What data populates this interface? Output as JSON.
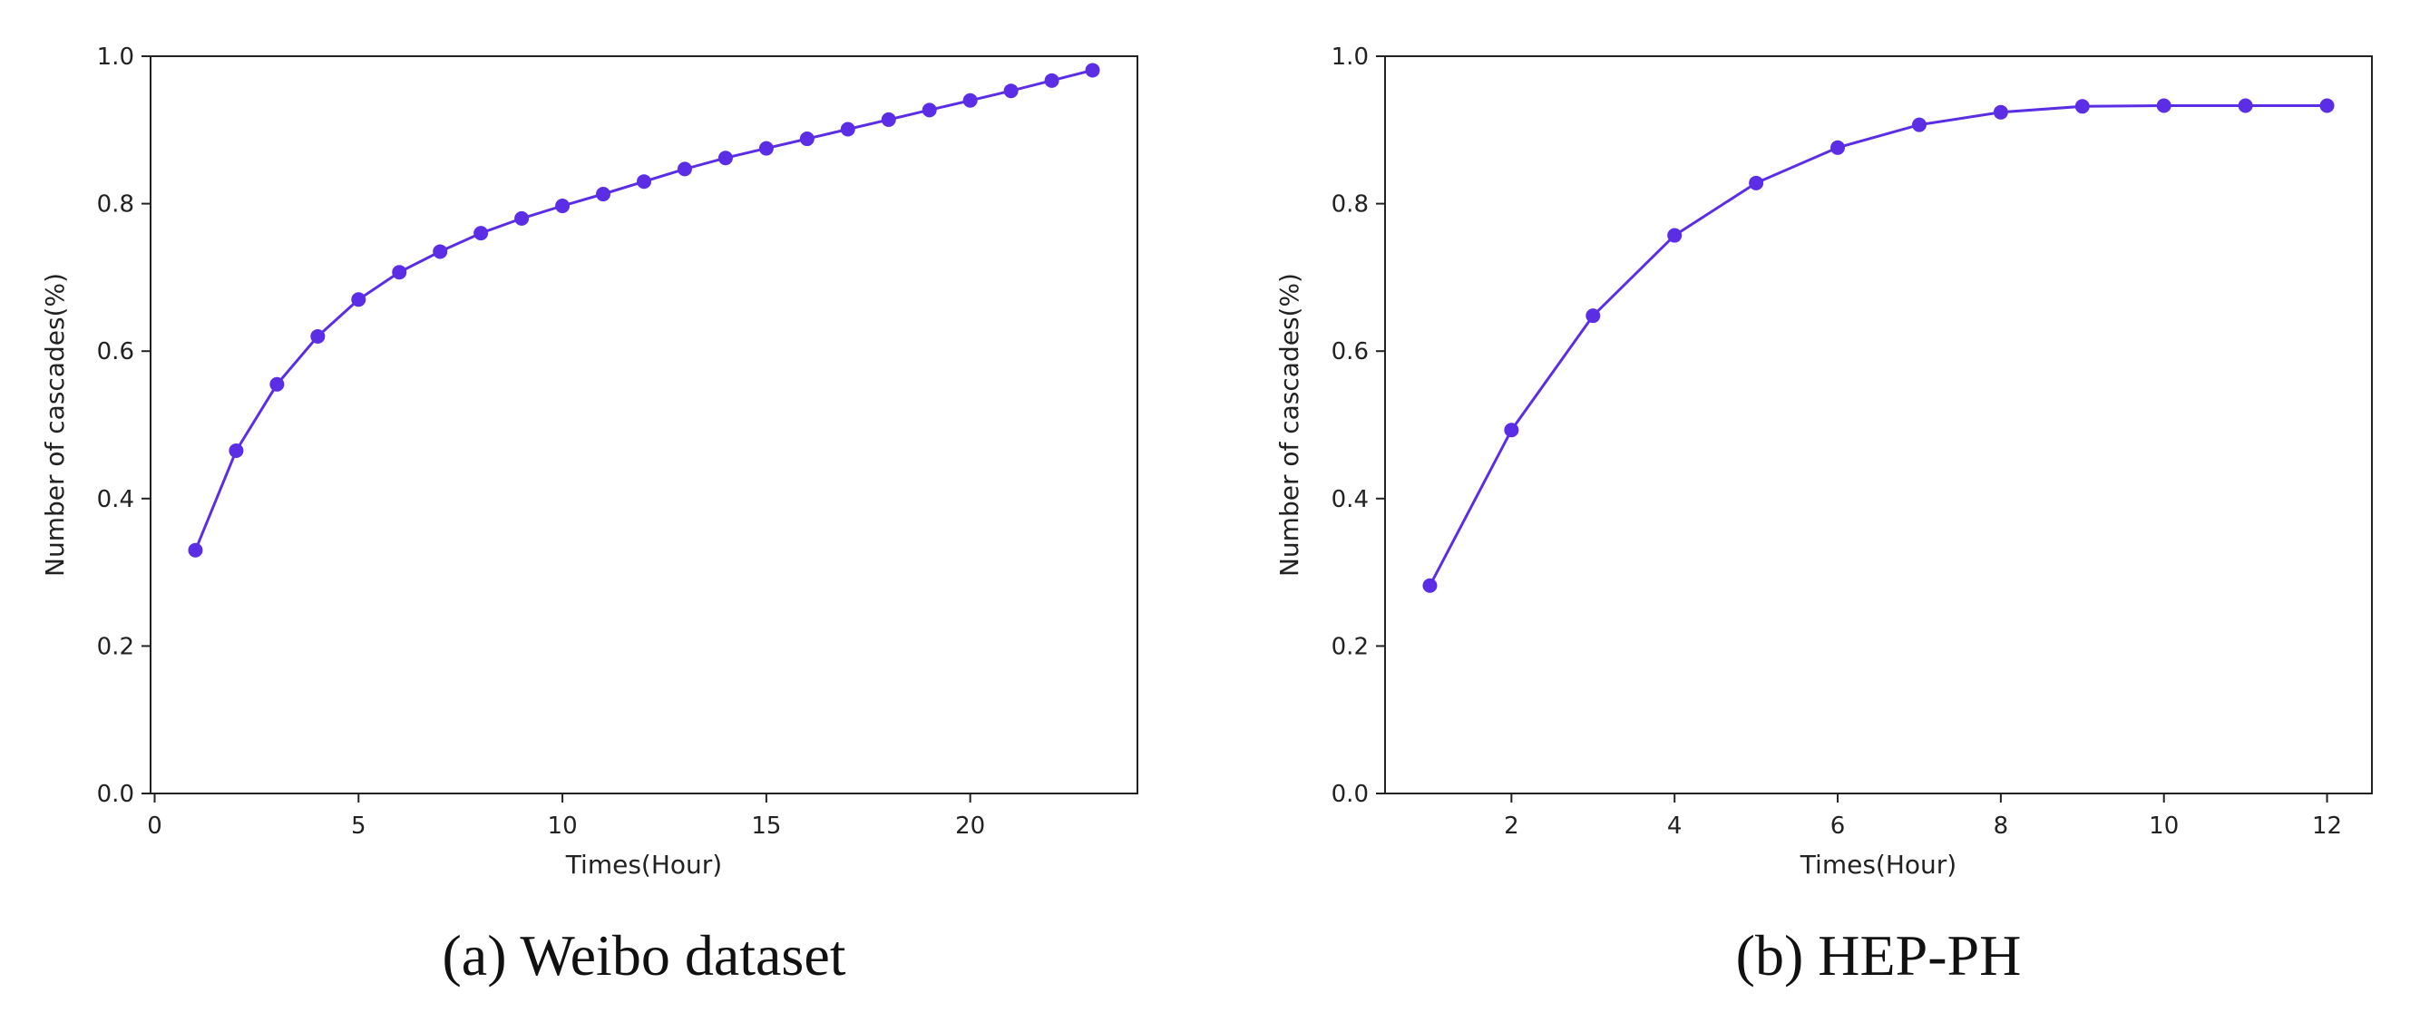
{
  "chart_data": [
    {
      "type": "line",
      "caption": "(a) Weibo dataset",
      "title": "",
      "xlabel": "Times(Hour)",
      "ylabel": "Number of cascades(%)",
      "xlim": [
        -0.1,
        24.1
      ],
      "ylim": [
        0.0,
        1.0
      ],
      "xticks": [
        0,
        5,
        10,
        15,
        20
      ],
      "yticks": [
        0.0,
        0.2,
        0.4,
        0.6,
        0.8,
        1.0
      ],
      "xtick_labels": [
        "0",
        "5",
        "10",
        "15",
        "20"
      ],
      "ytick_labels": [
        "0.0",
        "0.2",
        "0.4",
        "0.6",
        "0.8",
        "1.0"
      ],
      "grid": false,
      "color": "#5b2ee6",
      "series": [
        {
          "x": [
            1,
            2,
            3,
            4,
            5,
            6,
            7,
            8,
            9,
            10,
            11,
            12,
            13,
            14,
            15,
            16,
            17,
            18,
            19,
            20,
            21,
            22,
            23
          ],
          "values": [
            0.33,
            0.465,
            0.555,
            0.62,
            0.67,
            0.707,
            0.735,
            0.76,
            0.78,
            0.797,
            0.813,
            0.83,
            0.847,
            0.862,
            0.875,
            0.888,
            0.901,
            0.914,
            0.927,
            0.94,
            0.953,
            0.967,
            0.981
          ]
        }
      ]
    },
    {
      "type": "line",
      "caption": "(b) HEP-PH",
      "title": "",
      "xlabel": "Times(Hour)",
      "ylabel": "Number of cascades(%)",
      "xlim": [
        0.45,
        12.55
      ],
      "ylim": [
        0.0,
        1.0
      ],
      "xticks": [
        2,
        4,
        6,
        8,
        10,
        12
      ],
      "yticks": [
        0.0,
        0.2,
        0.4,
        0.6,
        0.8,
        1.0
      ],
      "xtick_labels": [
        "2",
        "4",
        "6",
        "8",
        "10",
        "12"
      ],
      "ytick_labels": [
        "0.0",
        "0.2",
        "0.4",
        "0.6",
        "0.8",
        "1.0"
      ],
      "grid": false,
      "color": "#5b2ee6",
      "series": [
        {
          "x": [
            1,
            2,
            3,
            4,
            5,
            6,
            7,
            8,
            9,
            10,
            11,
            12
          ],
          "values": [
            0.282,
            0.493,
            0.648,
            0.757,
            0.828,
            0.876,
            0.907,
            0.924,
            0.932,
            0.933,
            0.933,
            0.933
          ]
        }
      ]
    }
  ]
}
